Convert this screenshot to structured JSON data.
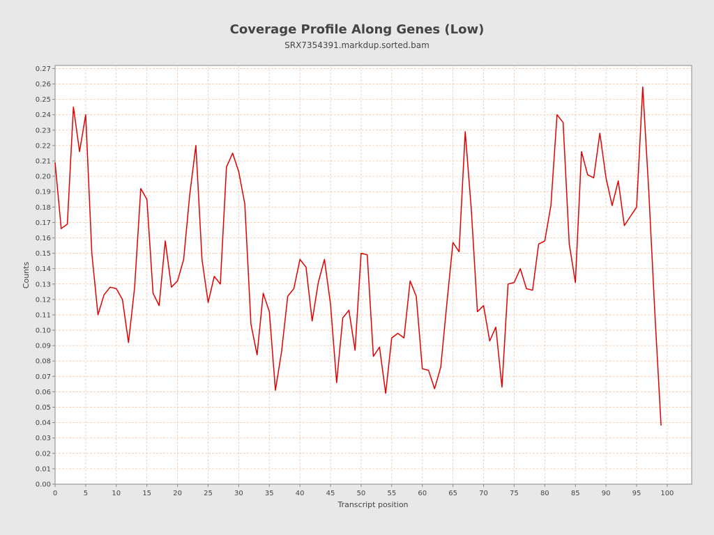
{
  "chart_data": {
    "type": "line",
    "title": "Coverage Profile Along Genes (Low)",
    "subtitle": "SRX7354391.markdup.sorted.bam",
    "xlabel": "Transcript position",
    "ylabel": "Counts",
    "xlim": [
      0,
      104
    ],
    "ylim": [
      0,
      0.272
    ],
    "x_ticks": [
      0,
      5,
      10,
      15,
      20,
      25,
      30,
      35,
      40,
      45,
      50,
      55,
      60,
      65,
      70,
      75,
      80,
      85,
      90,
      95,
      100
    ],
    "x_tick_labels": [
      "0",
      "5",
      "10",
      "15",
      "20",
      "25",
      "30",
      "35",
      "40",
      "45",
      "50",
      "55",
      "60",
      "65",
      "70",
      "75",
      "80",
      "85",
      "90",
      "95",
      "100"
    ],
    "y_ticks": [
      0,
      0.01,
      0.02,
      0.03,
      0.04,
      0.05,
      0.06,
      0.07,
      0.08,
      0.09,
      0.1,
      0.11,
      0.12,
      0.13,
      0.14,
      0.15,
      0.16,
      0.17,
      0.18,
      0.19,
      0.2,
      0.21,
      0.22,
      0.23,
      0.24,
      0.25,
      0.26,
      0.27
    ],
    "y_tick_labels": [
      "0.00",
      "0.01",
      "0.02",
      "0.03",
      "0.04",
      "0.05",
      "0.06",
      "0.07",
      "0.08",
      "0.09",
      "0.10",
      "0.11",
      "0.12",
      "0.13",
      "0.14",
      "0.15",
      "0.16",
      "0.17",
      "0.18",
      "0.19",
      "0.20",
      "0.21",
      "0.22",
      "0.23",
      "0.24",
      "0.25",
      "0.26",
      "0.27"
    ],
    "grid": true,
    "line_color": "#e00000",
    "x": [
      0,
      1,
      2,
      3,
      4,
      5,
      6,
      7,
      8,
      9,
      10,
      11,
      12,
      13,
      14,
      15,
      16,
      17,
      18,
      19,
      20,
      21,
      22,
      23,
      24,
      25,
      26,
      27,
      28,
      29,
      30,
      31,
      32,
      33,
      34,
      35,
      36,
      37,
      38,
      39,
      40,
      41,
      42,
      43,
      44,
      45,
      46,
      47,
      48,
      49,
      50,
      51,
      52,
      53,
      54,
      55,
      56,
      57,
      58,
      59,
      60,
      61,
      62,
      63,
      64,
      65,
      66,
      67,
      68,
      69,
      70,
      71,
      72,
      73,
      74,
      75,
      76,
      77,
      78,
      79,
      80,
      81,
      82,
      83,
      84,
      85,
      86,
      87,
      88,
      89,
      90,
      91,
      92,
      93,
      94,
      95,
      96,
      97,
      98,
      99
    ],
    "values": [
      0.209,
      0.166,
      0.169,
      0.245,
      0.216,
      0.24,
      0.15,
      0.11,
      0.123,
      0.128,
      0.127,
      0.12,
      0.092,
      0.128,
      0.192,
      0.185,
      0.124,
      0.116,
      0.158,
      0.128,
      0.132,
      0.146,
      0.188,
      0.22,
      0.146,
      0.118,
      0.135,
      0.13,
      0.206,
      0.215,
      0.203,
      0.182,
      0.104,
      0.084,
      0.124,
      0.112,
      0.061,
      0.086,
      0.122,
      0.127,
      0.146,
      0.141,
      0.106,
      0.131,
      0.146,
      0.117,
      0.066,
      0.108,
      0.113,
      0.087,
      0.15,
      0.149,
      0.083,
      0.089,
      0.059,
      0.095,
      0.098,
      0.095,
      0.132,
      0.122,
      0.075,
      0.074,
      0.062,
      0.076,
      0.117,
      0.157,
      0.151,
      0.229,
      0.178,
      0.112,
      0.116,
      0.093,
      0.102,
      0.063,
      0.13,
      0.131,
      0.14,
      0.127,
      0.126,
      0.156,
      0.158,
      0.181,
      0.24,
      0.235,
      0.156,
      0.131,
      0.216,
      0.201,
      0.199,
      0.228,
      0.199,
      0.181,
      0.197,
      0.168,
      0.174,
      0.18,
      0.258,
      0.19,
      0.11,
      0.038
    ]
  }
}
